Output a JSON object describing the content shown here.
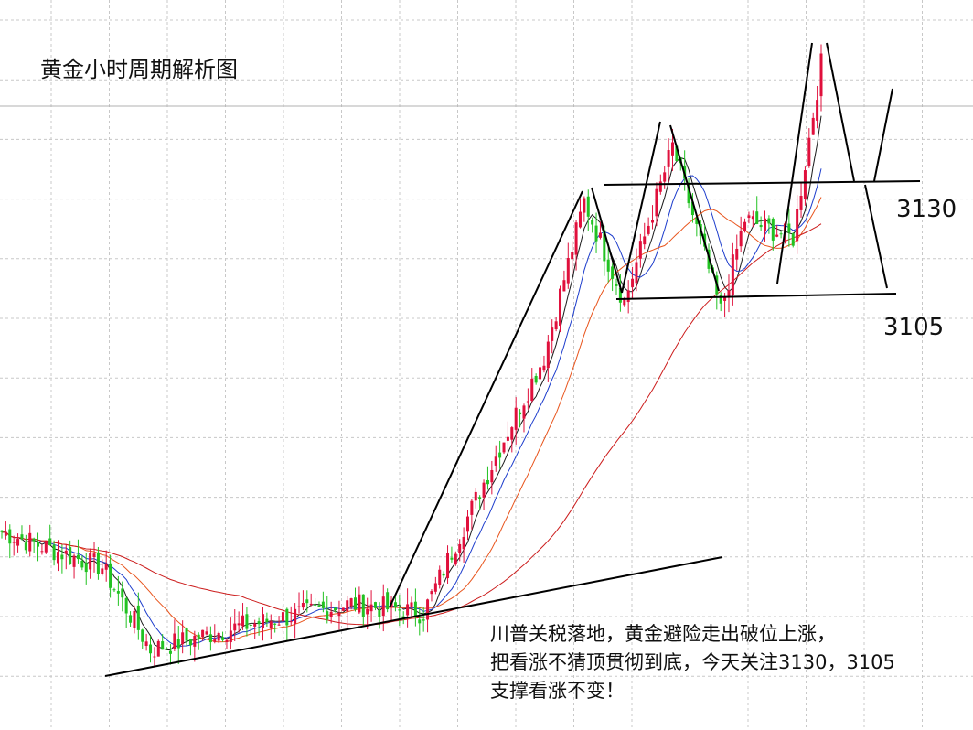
{
  "title": "黄金小时周期解析图",
  "levels": [
    {
      "label": "3130",
      "value": 3130
    },
    {
      "label": "3105",
      "value": 3105
    }
  ],
  "note_lines": [
    "川普关税落地，黄金避险走出破位上涨，",
    "把看涨不猜顶贯彻到底，今天关注3130，3105",
    "支撑看涨不变！"
  ],
  "colors": {
    "up": "#e0103c",
    "down": "#22c222",
    "ma_fast": "#1a1a1a",
    "ma_mid": "#1c3ccc",
    "ma_slow": "#e8541c",
    "ma_long": "#cc1c1c",
    "trend_line": "#000000",
    "grid": "#c8c8c8"
  },
  "chart_data": {
    "type": "candlestick",
    "instrument": "黄金",
    "timeframe": "1H",
    "grid": true,
    "price_axis_shown": false,
    "approx_price_range": [
      3020,
      3170
    ],
    "key_levels": [
      3130,
      3105
    ],
    "segments": [
      {
        "bars": 26,
        "start": 3058,
        "end": 3050
      },
      {
        "bars": 12,
        "start": 3050,
        "end": 3032
      },
      {
        "bars": 22,
        "start": 3032,
        "end": 3037
      },
      {
        "bars": 28,
        "start": 3037,
        "end": 3042
      },
      {
        "bars": 18,
        "start": 3042,
        "end": 3040
      },
      {
        "bars": 20,
        "start": 3040,
        "end": 3078
      },
      {
        "bars": 10,
        "start": 3078,
        "end": 3096
      },
      {
        "bars": 10,
        "start": 3096,
        "end": 3130
      },
      {
        "bars": 10,
        "start": 3130,
        "end": 3108
      },
      {
        "bars": 12,
        "start": 3108,
        "end": 3142
      },
      {
        "bars": 12,
        "start": 3142,
        "end": 3106
      },
      {
        "bars": 6,
        "start": 3106,
        "end": 3126
      },
      {
        "bars": 12,
        "start": 3126,
        "end": 3122
      },
      {
        "bars": 7,
        "start": 3122,
        "end": 3160
      }
    ]
  }
}
